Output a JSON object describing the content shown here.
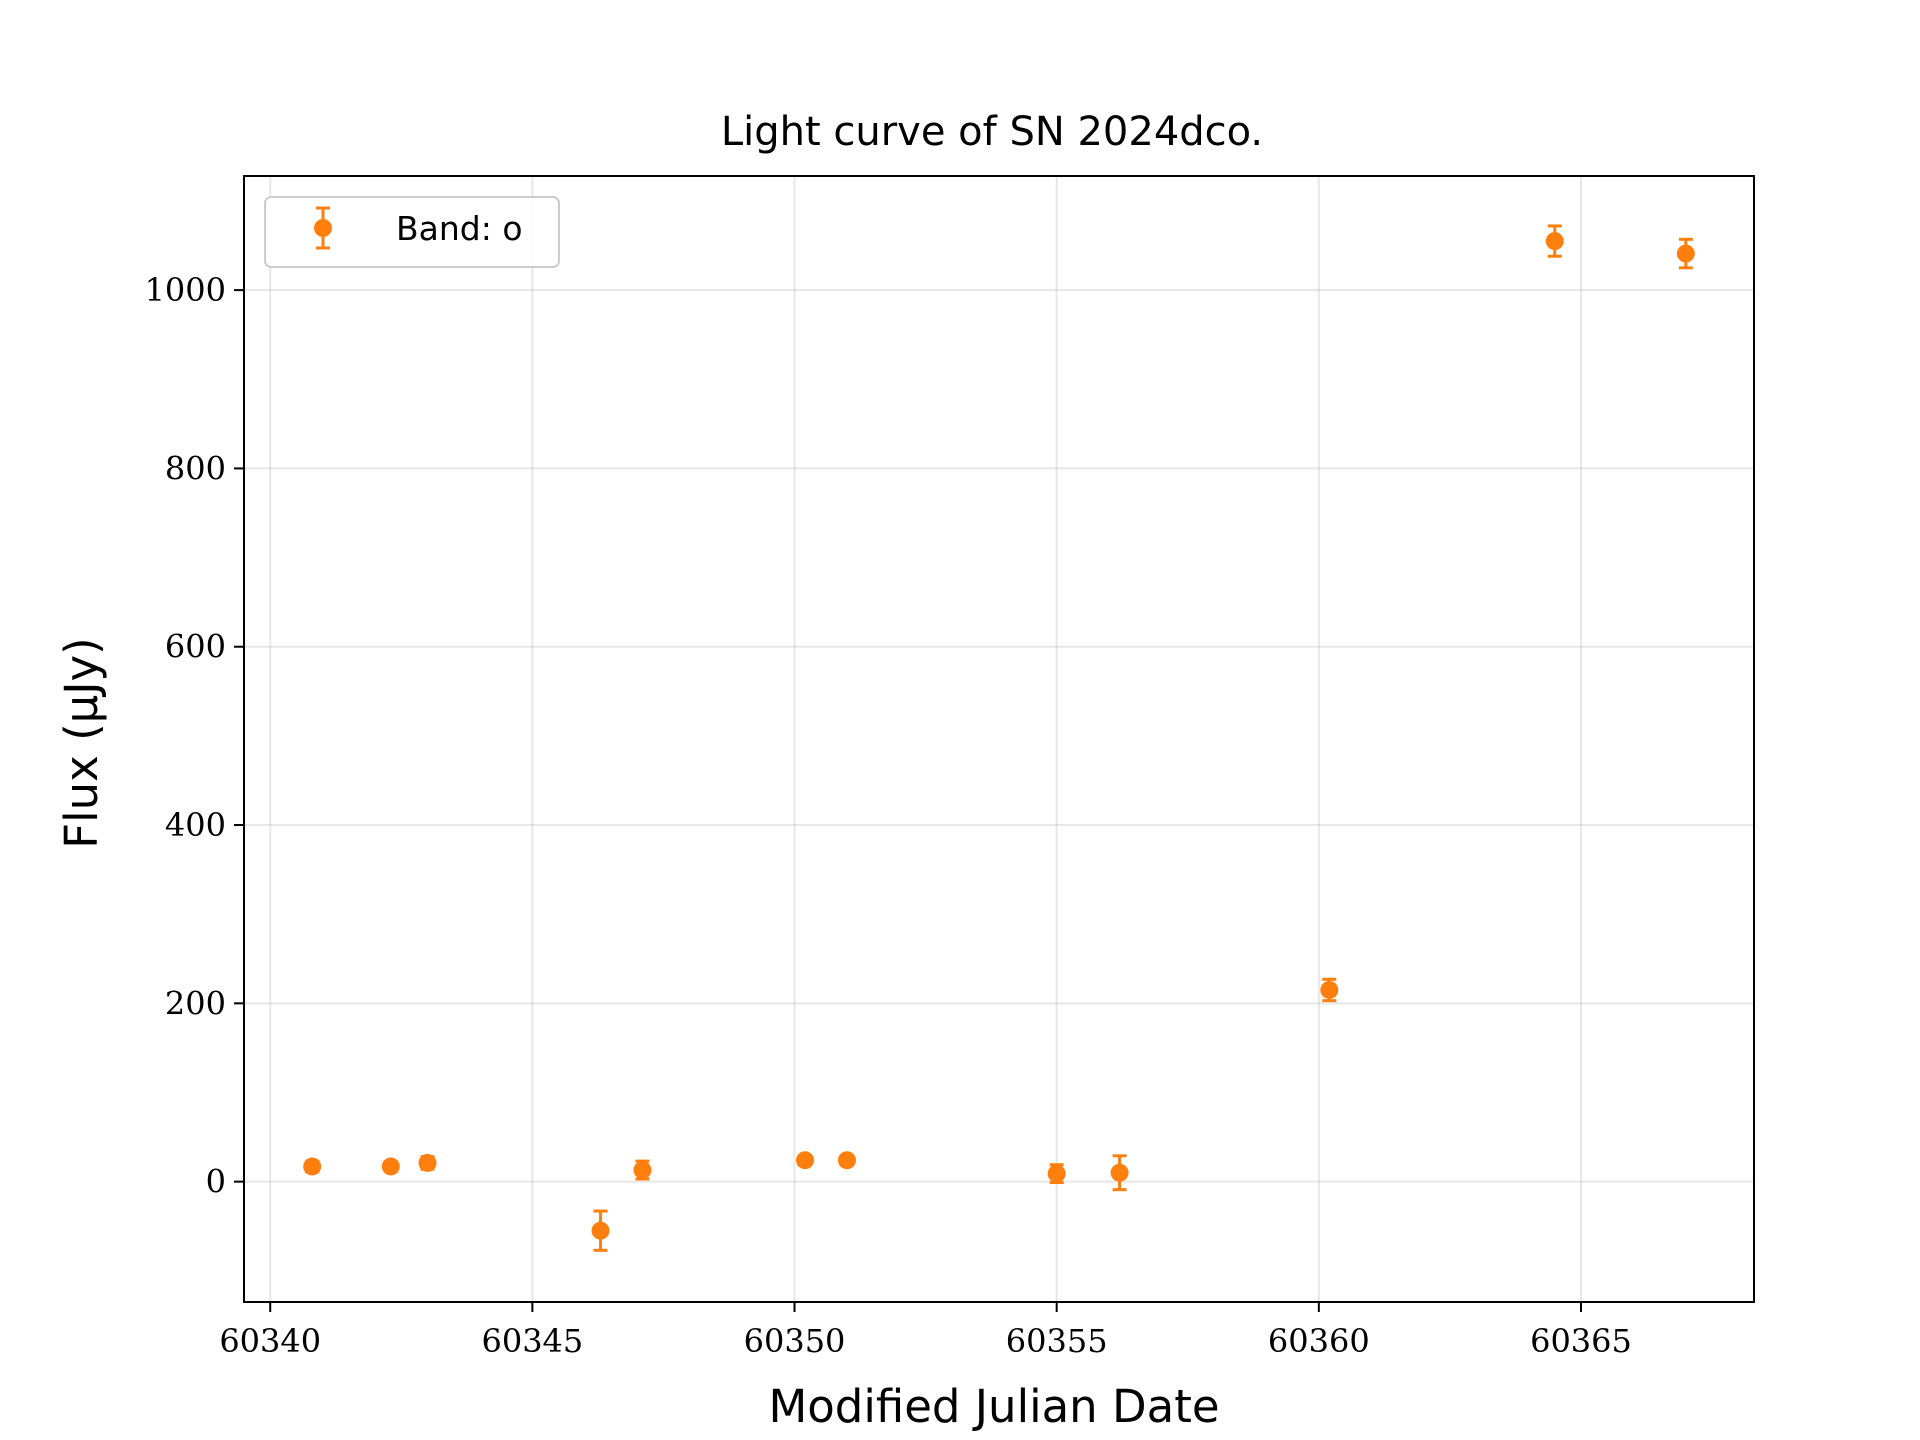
{
  "chart_data": {
    "type": "scatter",
    "title": "Light curve of SN 2024dco.",
    "xlabel": "Modified Julian Date",
    "ylabel": "Flux (μJy)",
    "xlim": [
      60339.5,
      60368.3
    ],
    "ylim": [
      -135,
      1128
    ],
    "xticks": [
      60340,
      60345,
      60350,
      60355,
      60360,
      60365
    ],
    "yticks": [
      0,
      200,
      400,
      600,
      800,
      1000
    ],
    "xtick_labels": [
      "60340",
      "60345",
      "60350",
      "60355",
      "60360",
      "60365"
    ],
    "ytick_labels": [
      "0",
      "200",
      "400",
      "600",
      "800",
      "1000"
    ],
    "grid": true,
    "legend_position": "top-left",
    "series": [
      {
        "name": "Band: o",
        "color": "#ff7f0e",
        "points": [
          {
            "x": 60340.8,
            "y": 17,
            "err": 6
          },
          {
            "x": 60342.3,
            "y": 17,
            "err": 5
          },
          {
            "x": 60343.0,
            "y": 21,
            "err": 7
          },
          {
            "x": 60346.3,
            "y": -55,
            "err": 22
          },
          {
            "x": 60347.1,
            "y": 13,
            "err": 10
          },
          {
            "x": 60350.2,
            "y": 24,
            "err": 5
          },
          {
            "x": 60351.0,
            "y": 24,
            "err": 5
          },
          {
            "x": 60355.0,
            "y": 9,
            "err": 10
          },
          {
            "x": 60356.2,
            "y": 10,
            "err": 19
          },
          {
            "x": 60360.2,
            "y": 215,
            "err": 12
          },
          {
            "x": 60364.5,
            "y": 1055,
            "err": 17
          },
          {
            "x": 60367.0,
            "y": 1041,
            "err": 16
          }
        ]
      }
    ]
  }
}
